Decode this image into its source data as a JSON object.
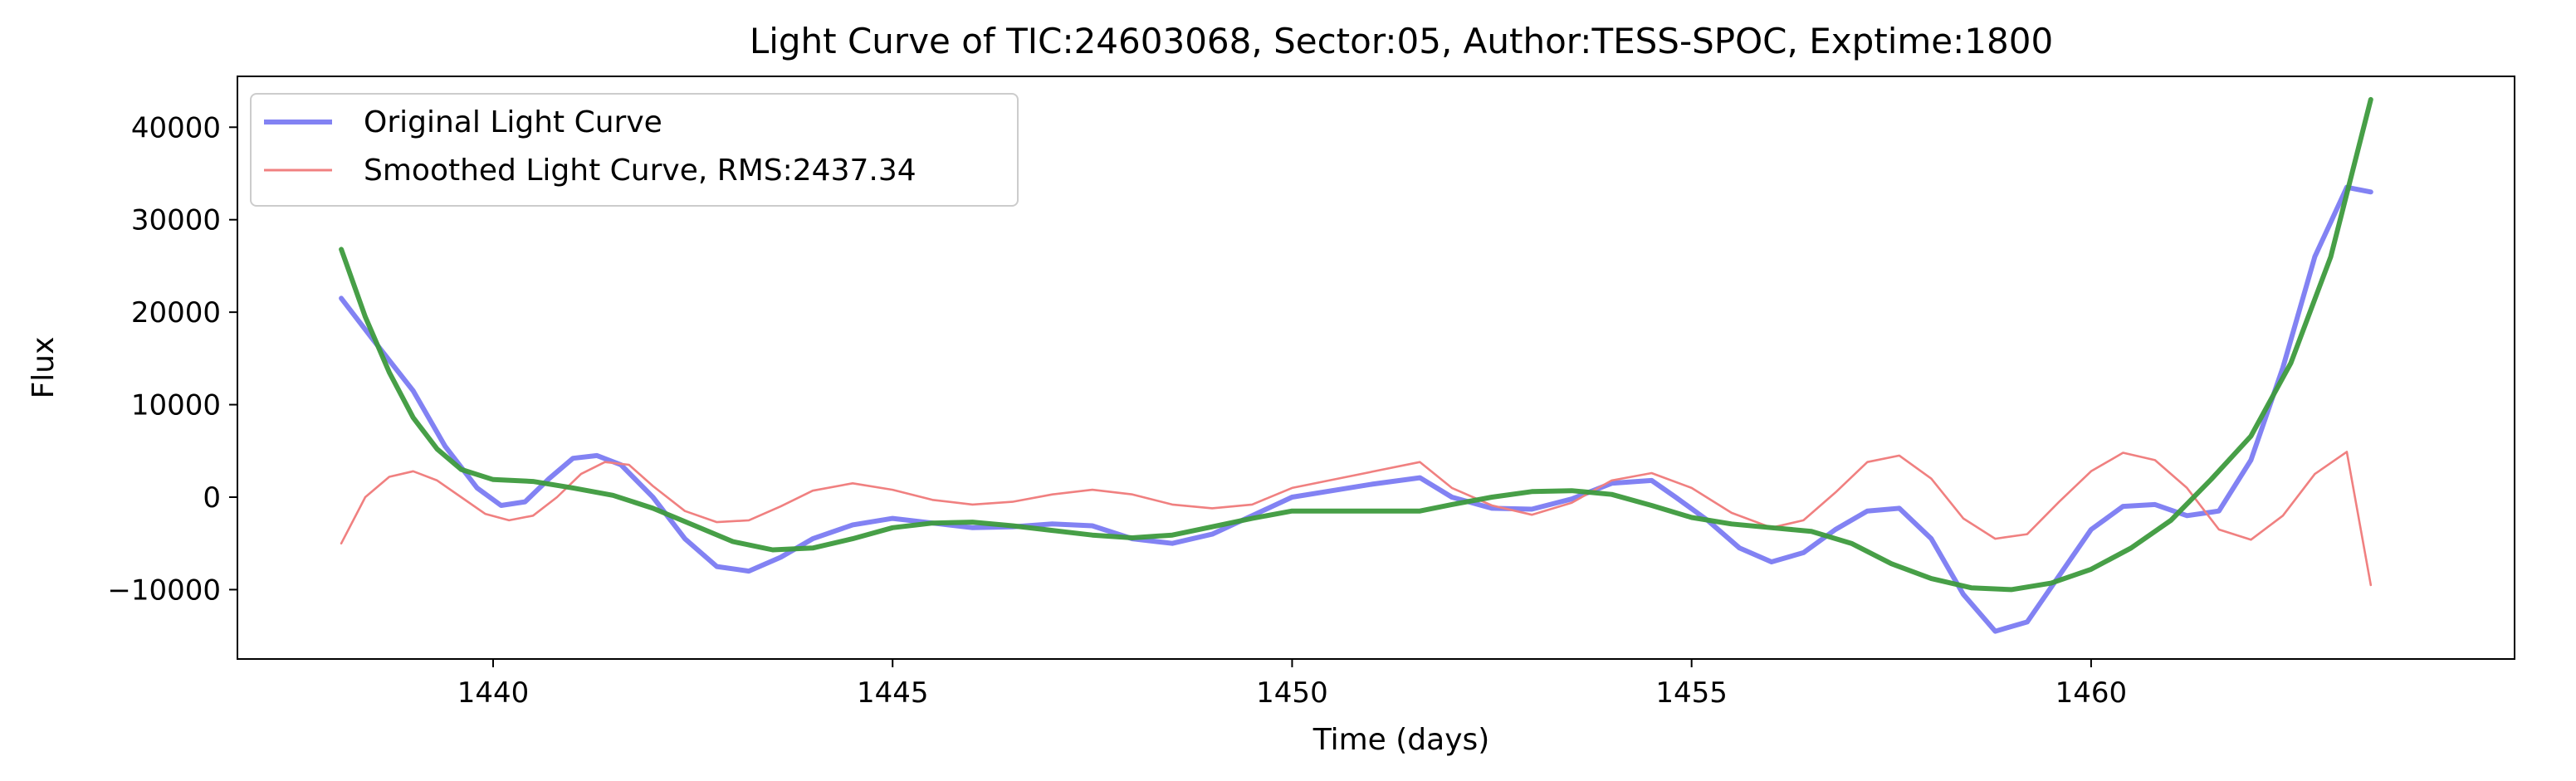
{
  "chart_data": {
    "type": "line",
    "title": "Light Curve of TIC:24603068, Sector:05, Author:TESS-SPOC, Exptime:1800",
    "xlabel": "Time (days)",
    "ylabel": "Flux",
    "xlim": [
      1436.8,
      1465.3
    ],
    "ylim": [
      -17500,
      45500
    ],
    "x_ticks": [
      1440,
      1445,
      1450,
      1455,
      1460
    ],
    "x_tick_labels": [
      "1440",
      "1445",
      "1450",
      "1455",
      "1460"
    ],
    "y_ticks": [
      -10000,
      0,
      10000,
      20000,
      30000,
      40000
    ],
    "y_tick_labels": [
      "−10000",
      "0",
      "10000",
      "20000",
      "30000",
      "40000"
    ],
    "grid": false,
    "legend_position": "top-left",
    "legend": [
      {
        "label": "Original Light Curve",
        "color": "#7b7bf2"
      },
      {
        "label": "Smoothed Light Curve, RMS:2437.34",
        "color": "#f08080"
      }
    ],
    "series": [
      {
        "role": "original",
        "color": "#7b7bf2",
        "x": [
          1438.1,
          1438.5,
          1439.0,
          1439.4,
          1439.8,
          1440.1,
          1440.4,
          1440.7,
          1441.0,
          1441.3,
          1441.6,
          1442.0,
          1442.4,
          1442.8,
          1443.2,
          1443.6,
          1444.0,
          1444.5,
          1445.0,
          1445.5,
          1446.0,
          1446.5,
          1447.0,
          1447.5,
          1448.0,
          1448.5,
          1449.0,
          1449.5,
          1450.0,
          1450.5,
          1451.0,
          1451.6,
          1452.0,
          1452.5,
          1453.0,
          1453.5,
          1454.0,
          1454.5,
          1454.8,
          1455.2,
          1455.6,
          1456.0,
          1456.4,
          1456.8,
          1457.2,
          1457.6,
          1458.0,
          1458.4,
          1458.8,
          1459.2,
          1459.6,
          1460.0,
          1460.4,
          1460.8,
          1461.2,
          1461.6,
          1462.0,
          1462.4,
          1462.8,
          1463.2,
          1463.5
        ],
        "y": [
          21500,
          17000,
          11500,
          5500,
          1000,
          -900,
          -500,
          2000,
          4200,
          4500,
          3500,
          0,
          -4500,
          -7500,
          -8000,
          -6500,
          -4500,
          -3000,
          -2300,
          -2800,
          -3300,
          -3200,
          -2900,
          -3100,
          -4500,
          -5000,
          -4000,
          -2000,
          0,
          700,
          1400,
          2100,
          0,
          -1200,
          -1300,
          -200,
          1500,
          1800,
          0,
          -2500,
          -5500,
          -7000,
          -6000,
          -3500,
          -1500,
          -1200,
          -4500,
          -10500,
          -14500,
          -13500,
          -8500,
          -3500,
          -1000,
          -800,
          -2000,
          -1500,
          4000,
          14000,
          26000,
          33500,
          33000
        ]
      },
      {
        "role": "smoothed",
        "color": "#f08080",
        "x": [
          1438.1,
          1438.4,
          1438.7,
          1439.0,
          1439.3,
          1439.6,
          1439.9,
          1440.2,
          1440.5,
          1440.8,
          1441.1,
          1441.4,
          1441.7,
          1442.0,
          1442.4,
          1442.8,
          1443.2,
          1443.6,
          1444.0,
          1444.5,
          1445.0,
          1445.5,
          1446.0,
          1446.5,
          1447.0,
          1447.5,
          1448.0,
          1448.5,
          1449.0,
          1449.5,
          1450.0,
          1451.6,
          1452.0,
          1452.5,
          1453.0,
          1453.5,
          1454.0,
          1454.5,
          1455.0,
          1455.5,
          1456.0,
          1456.4,
          1456.8,
          1457.2,
          1457.6,
          1458.0,
          1458.4,
          1458.8,
          1459.2,
          1459.6,
          1460.0,
          1460.4,
          1460.8,
          1461.2,
          1461.6,
          1462.0,
          1462.4,
          1462.8,
          1463.2,
          1463.5
        ],
        "y": [
          -5000,
          0,
          2200,
          2800,
          1800,
          0,
          -1800,
          -2500,
          -2000,
          0,
          2500,
          3800,
          3500,
          1200,
          -1500,
          -2700,
          -2500,
          -1000,
          700,
          1500,
          800,
          -300,
          -800,
          -500,
          300,
          800,
          300,
          -800,
          -1200,
          -800,
          1000,
          3800,
          1000,
          -900,
          -1900,
          -600,
          1800,
          2600,
          1000,
          -1700,
          -3300,
          -2500,
          500,
          3800,
          4500,
          2000,
          -2300,
          -4500,
          -4000,
          -500,
          2800,
          4800,
          4000,
          1000,
          -3500,
          -4600,
          -2000,
          2500,
          4900,
          -9500
        ]
      },
      {
        "role": "trend",
        "color": "#3d9a3d",
        "x": [
          1438.1,
          1438.4,
          1438.7,
          1439.0,
          1439.3,
          1439.6,
          1440.0,
          1440.5,
          1441.0,
          1441.5,
          1442.0,
          1442.5,
          1443.0,
          1443.5,
          1444.0,
          1444.5,
          1445.0,
          1445.5,
          1446.0,
          1446.5,
          1447.0,
          1447.5,
          1448.0,
          1448.5,
          1449.0,
          1449.5,
          1450.0,
          1450.5,
          1451.0,
          1451.6,
          1452.0,
          1452.5,
          1453.0,
          1453.5,
          1454.0,
          1454.5,
          1455.0,
          1455.5,
          1456.0,
          1456.5,
          1457.0,
          1457.5,
          1458.0,
          1458.5,
          1459.0,
          1459.5,
          1460.0,
          1460.5,
          1461.0,
          1461.5,
          1462.0,
          1462.5,
          1463.0,
          1463.5
        ],
        "y": [
          26800,
          19500,
          13500,
          8600,
          5200,
          3000,
          1900,
          1700,
          1000,
          200,
          -1200,
          -3000,
          -4800,
          -5700,
          -5500,
          -4500,
          -3300,
          -2800,
          -2700,
          -3100,
          -3600,
          -4100,
          -4400,
          -4100,
          -3200,
          -2300,
          -1500,
          -1500,
          -1500,
          -1500,
          -800,
          0,
          600,
          700,
          300,
          -900,
          -2200,
          -2900,
          -3300,
          -3700,
          -5000,
          -7200,
          -8800,
          -9800,
          -10000,
          -9300,
          -7800,
          -5500,
          -2500,
          1900,
          6600,
          14500,
          26000,
          43000
        ]
      }
    ]
  }
}
